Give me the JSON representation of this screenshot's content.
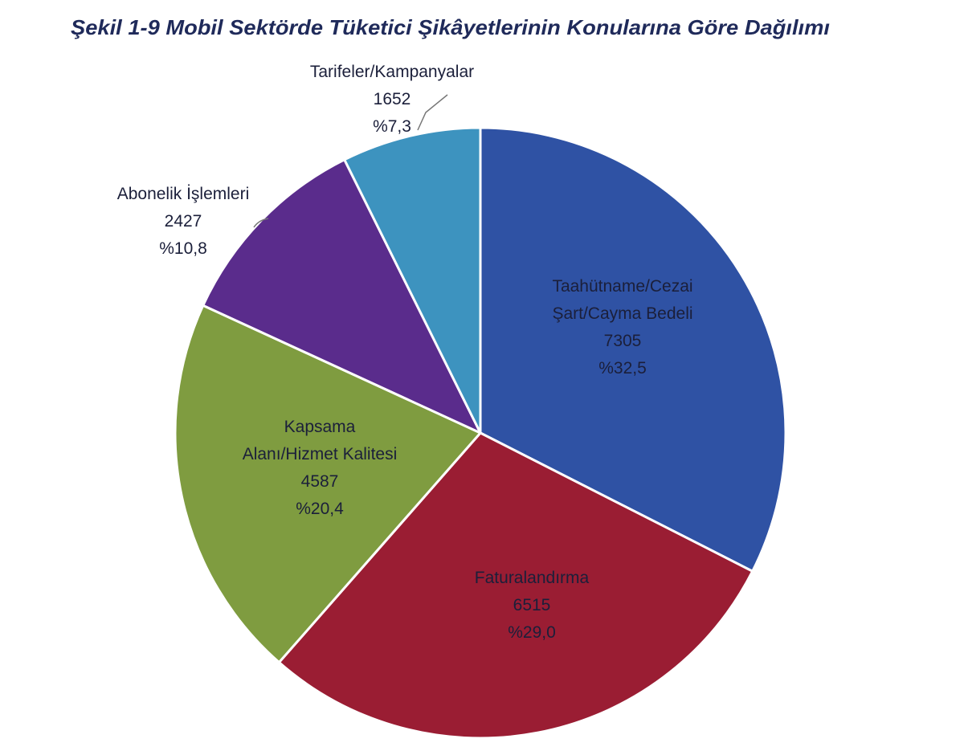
{
  "chart_data": {
    "type": "pie",
    "title": "Şekil 1-9 Mobil Sektörde Tüketici Şikâyetlerinin Konularına Göre Dağılımı",
    "categories": [
      "Taahütname/Cezai\nŞart/Cayma Bedeli",
      "Faturalandırma",
      "Kapsama\nAlanı/Hizmet Kalitesi",
      "Abonelik İşlemleri",
      "Tarifeler/Kampanyalar"
    ],
    "values": [
      7305,
      6515,
      4587,
      2427,
      1652
    ],
    "percentages": [
      {
        "value": 32.5,
        "label": "%32,5"
      },
      {
        "value": 29.0,
        "label": "%29,0"
      },
      {
        "value": 20.4,
        "label": "%20,4"
      },
      {
        "value": 10.8,
        "label": "%10,8"
      },
      {
        "value": 7.3,
        "label": "%7,3"
      }
    ],
    "colors": [
      "#2f52a4",
      "#9a1d33",
      "#7f9c40",
      "#5a2c8c",
      "#3d93bf"
    ]
  }
}
